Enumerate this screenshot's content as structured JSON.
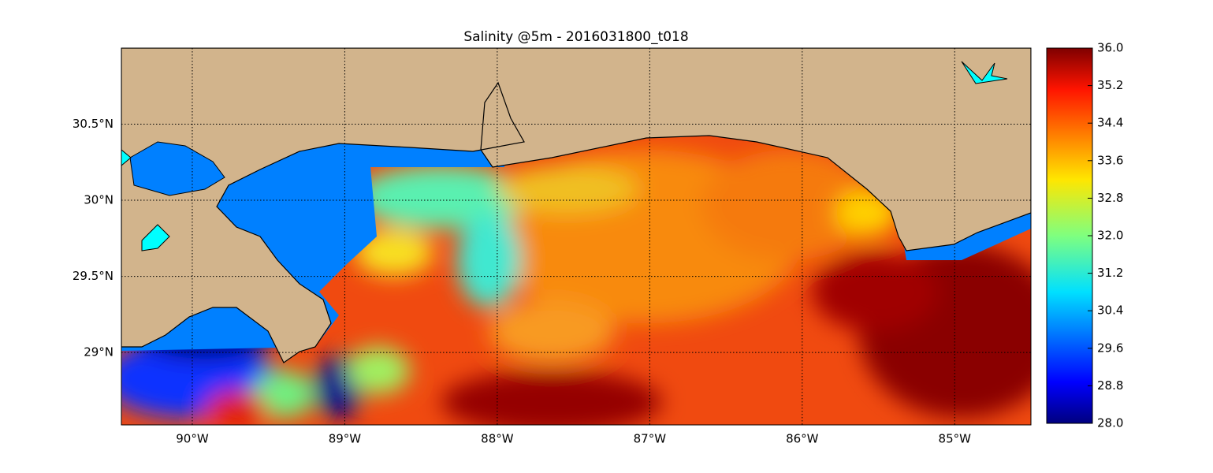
{
  "map": {
    "title": "Salinity @5m - 2016031800_t018",
    "xlim": [
      -90.465,
      -84.5
    ],
    "ylim": [
      28.524,
      31.0
    ],
    "xticks": [
      {
        "value": -90,
        "label": "90°W"
      },
      {
        "value": -89,
        "label": "89°W"
      },
      {
        "value": -88,
        "label": "88°W"
      },
      {
        "value": -87,
        "label": "87°W"
      },
      {
        "value": -86,
        "label": "86°W"
      },
      {
        "value": -85,
        "label": "85°W"
      }
    ],
    "yticks": [
      {
        "value": 29,
        "label": "29°N"
      },
      {
        "value": 29.5,
        "label": "29.5°N"
      },
      {
        "value": 30,
        "label": "30°N"
      },
      {
        "value": 30.5,
        "label": "30.5°N"
      }
    ],
    "grid": true,
    "colorbar": {
      "lim": [
        28.0,
        36.0
      ],
      "ticks": [
        {
          "value": 28.0,
          "label": "28.0"
        },
        {
          "value": 28.8,
          "label": "28.8"
        },
        {
          "value": 29.6,
          "label": "29.6"
        },
        {
          "value": 30.4,
          "label": "30.4"
        },
        {
          "value": 31.2,
          "label": "31.2"
        },
        {
          "value": 32.0,
          "label": "32.0"
        },
        {
          "value": 32.8,
          "label": "32.8"
        },
        {
          "value": 33.6,
          "label": "33.6"
        },
        {
          "value": 34.4,
          "label": "34.4"
        },
        {
          "value": 35.2,
          "label": "35.2"
        },
        {
          "value": 36.0,
          "label": "36.0"
        }
      ]
    }
  }
}
